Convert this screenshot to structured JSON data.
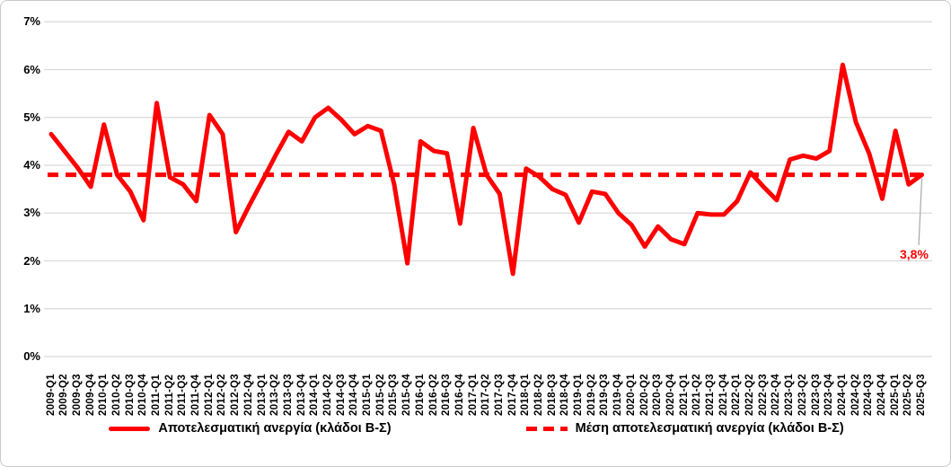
{
  "chart_data": {
    "type": "line",
    "title": "",
    "x_categories": [
      "2009-Q1",
      "2009-Q2",
      "2009-Q3",
      "2009-Q4",
      "2010-Q1",
      "2010-Q2",
      "2010-Q3",
      "2010-Q4",
      "2011-Q1",
      "2011-Q2",
      "2011-Q3",
      "2011-Q4",
      "2012-Q1",
      "2012-Q2",
      "2012-Q3",
      "2012-Q4",
      "2013-Q1",
      "2013-Q2",
      "2013-Q3",
      "2013-Q4",
      "2014-Q1",
      "2014-Q2",
      "2014-Q3",
      "2014-Q4",
      "2015-Q1",
      "2015-Q2",
      "2015-Q3",
      "2015-Q4",
      "2016-Q1",
      "2016-Q2",
      "2016-Q3",
      "2016-Q4",
      "2017-Q1",
      "2017-Q2",
      "2017-Q3",
      "2017-Q4",
      "2018-Q1",
      "2018-Q2",
      "2018-Q3",
      "2018-Q4",
      "2019-Q1",
      "2019-Q2",
      "2019-Q3",
      "2019-Q4",
      "2020-Q1",
      "2020-Q2",
      "2020-Q3",
      "2020-Q4",
      "2021-Q1",
      "2021-Q2",
      "2021-Q3",
      "2021-Q4",
      "2022-Q1",
      "2022-Q2",
      "2022-Q3",
      "2022-Q4",
      "2023-Q1",
      "2023-Q2",
      "2023-Q3",
      "2023-Q4",
      "2024-Q1",
      "2024-Q2",
      "2024-Q3",
      "2024-Q4",
      "2025-Q1",
      "2025-Q2",
      "2025-Q3"
    ],
    "series": [
      {
        "name": "Αποτελεσματική ανεργία (κλάδοι Β-Σ)",
        "style": "solid",
        "values": [
          4.65,
          4.3,
          3.95,
          3.55,
          4.85,
          3.8,
          3.45,
          2.85,
          5.3,
          3.75,
          3.6,
          3.25,
          5.05,
          4.65,
          2.6,
          3.15,
          3.67,
          4.2,
          4.7,
          4.5,
          5.0,
          5.2,
          4.95,
          4.65,
          4.82,
          4.72,
          3.6,
          1.95,
          4.5,
          4.3,
          4.25,
          2.78,
          4.78,
          3.8,
          3.4,
          1.73,
          3.93,
          3.76,
          3.5,
          3.38,
          2.8,
          3.45,
          3.4,
          3.0,
          2.75,
          2.3,
          2.72,
          2.45,
          2.35,
          3.0,
          2.97,
          2.97,
          3.25,
          3.85,
          3.55,
          3.27,
          4.12,
          4.2,
          4.14,
          4.3,
          6.1,
          4.9,
          4.25,
          3.3,
          4.72,
          3.6,
          3.8
        ]
      },
      {
        "name": "Μέση αποτελεσματική ανεργία (κλάδοι Β-Σ)",
        "style": "dashed",
        "value": 3.8
      }
    ],
    "ylim": [
      0,
      7
    ],
    "yticks": [
      "0%",
      "1%",
      "2%",
      "3%",
      "4%",
      "5%",
      "6%",
      "7%"
    ],
    "grid": true,
    "legend_position": "bottom",
    "annotation": {
      "text": "3,8%"
    },
    "colors": {
      "series": "#fe0000",
      "mean": "#fe0000",
      "grid": "#d9d9d9",
      "leader": "#a6a6a6",
      "text": "#000000"
    }
  }
}
